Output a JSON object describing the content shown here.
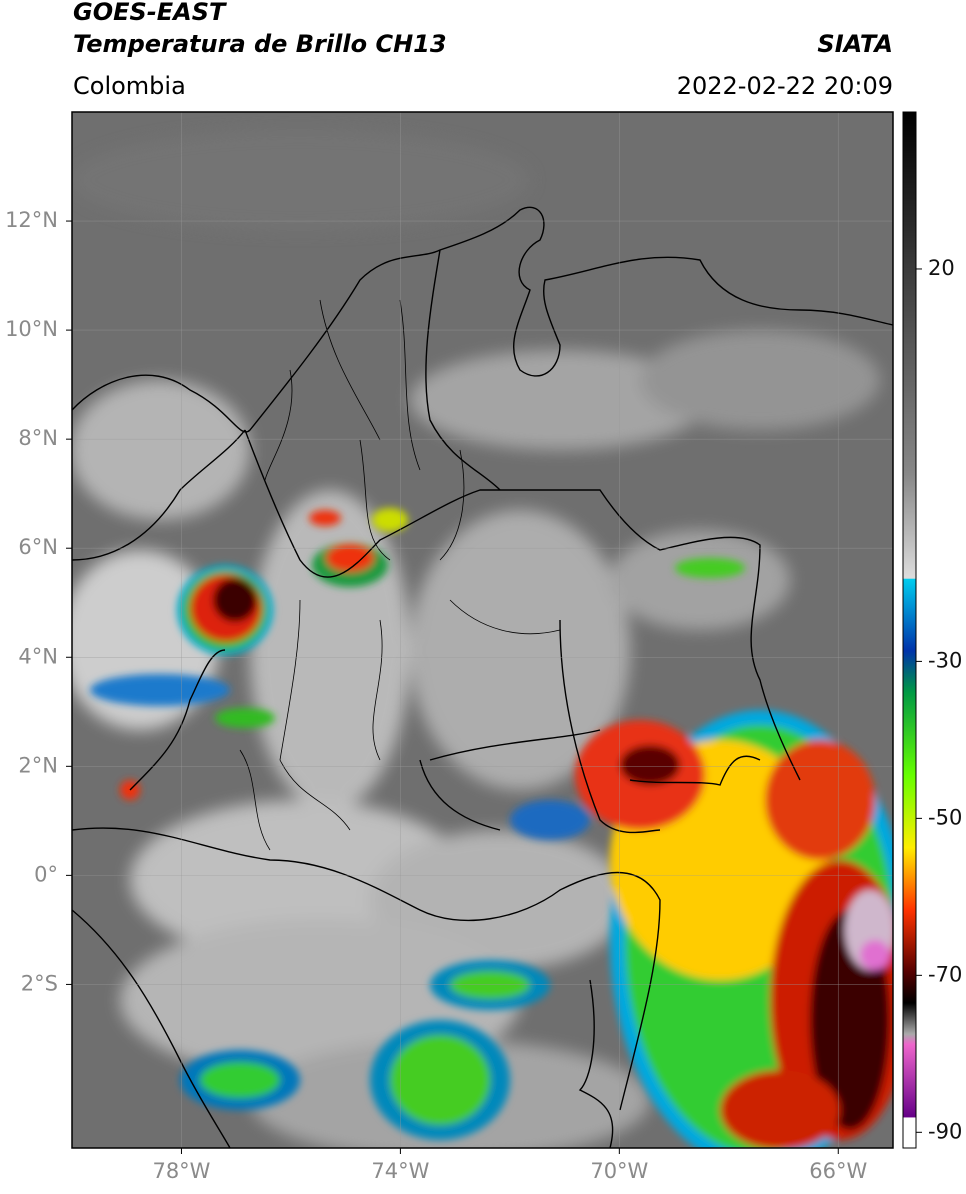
{
  "header": {
    "title": "GOES-EAST",
    "subtitle": "Temperatura de Brillo CH13",
    "region": "Colombia",
    "source": "SIATA",
    "timestamp": "2022-02-22 20:09"
  },
  "map": {
    "xlim": [
      -80,
      -65
    ],
    "ylim": [
      -5,
      14
    ],
    "xticks": [
      {
        "value": -78,
        "label": "78°W"
      },
      {
        "value": -74,
        "label": "74°W"
      },
      {
        "value": -70,
        "label": "70°W"
      },
      {
        "value": -66,
        "label": "66°W"
      }
    ],
    "yticks": [
      {
        "value": 12,
        "label": "12°N"
      },
      {
        "value": 10,
        "label": "10°N"
      },
      {
        "value": 8,
        "label": "8°N"
      },
      {
        "value": 6,
        "label": "6°N"
      },
      {
        "value": 4,
        "label": "4°N"
      },
      {
        "value": 2,
        "label": "2°N"
      },
      {
        "value": 0,
        "label": "0°"
      },
      {
        "value": -2,
        "label": "2°S"
      }
    ],
    "grid": true
  },
  "colorbar": {
    "range": [
      -92,
      40
    ],
    "ticks": [
      20,
      -30,
      -50,
      -70,
      -90
    ]
  }
}
